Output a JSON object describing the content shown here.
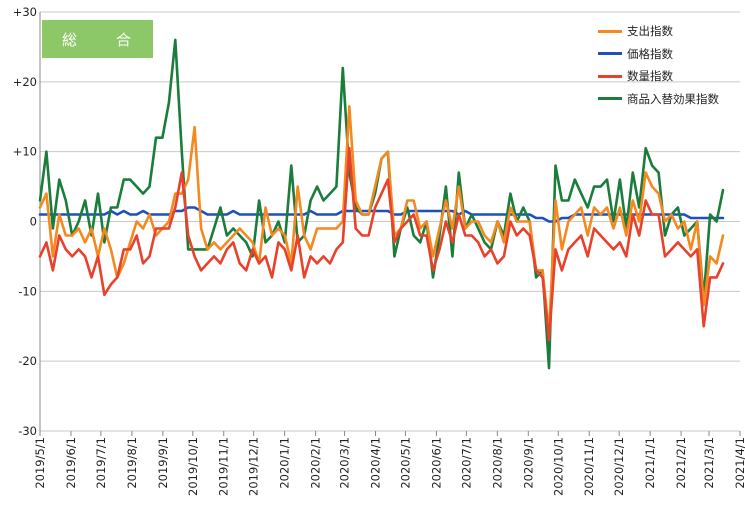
{
  "chart_data": {
    "type": "line",
    "title": "総　合",
    "ylim": [
      -30,
      30
    ],
    "yticks": [
      30,
      20,
      10,
      0,
      -10,
      -20,
      -30
    ],
    "ytick_labels": [
      "+30",
      "+20",
      "+10",
      "0",
      "-10",
      "-20",
      "-30"
    ],
    "x_start": "2019-05-01",
    "x_end": "2021-04-01",
    "x_step": "weekly",
    "xtick_labels": [
      "2019/5/1",
      "2019/6/1",
      "2019/7/1",
      "2019/8/1",
      "2019/9/1",
      "2019/10/1",
      "2019/11/1",
      "2019/12/1",
      "2020/1/1",
      "2020/2/1",
      "2020/3/1",
      "2020/4/1",
      "2020/5/1",
      "2020/6/1",
      "2020/7/1",
      "2020/8/1",
      "2020/9/1",
      "2020/10/1",
      "2020/11/1",
      "2020/12/1",
      "2021/1/1",
      "2021/2/1",
      "2021/3/1",
      "2021/4/1"
    ],
    "grid": "horizontal",
    "legend_position": "top-right",
    "series": [
      {
        "name": "支出指数",
        "color": "#f5891f",
        "values": [
          2,
          4,
          -5,
          1,
          -2,
          -2,
          -1,
          -3,
          -1,
          -5,
          -1,
          -4,
          -8,
          -6,
          -3,
          0,
          -1,
          1,
          -2,
          -1,
          0,
          4,
          4,
          6,
          13.5,
          -1,
          -4,
          -3,
          -4,
          -3,
          -2,
          -1,
          -2,
          -3,
          -6,
          2,
          -2,
          -1,
          -2,
          -6,
          5,
          -2,
          -4,
          -1,
          -1,
          -1,
          -1,
          0,
          16.5,
          3,
          1,
          1,
          5,
          9,
          10,
          -2,
          -1,
          3,
          3,
          -1,
          0,
          -5,
          -1,
          3,
          -1,
          5,
          -1,
          0,
          0,
          -2,
          -3,
          0,
          -3,
          2,
          0,
          0,
          0,
          -7,
          -7,
          -16,
          3,
          -4,
          0,
          1,
          2,
          -2,
          2,
          1,
          2,
          -1,
          2,
          -2,
          3,
          0,
          7,
          5,
          4,
          0,
          1,
          -1,
          0,
          -4,
          0,
          -12,
          -5,
          -6,
          -2
        ]
      },
      {
        "name": "価格指数",
        "color": "#1e4fbf",
        "values": [
          1,
          1,
          1,
          1,
          1,
          1,
          1,
          1,
          1,
          1,
          1,
          1.5,
          1,
          1.5,
          1,
          1,
          1.5,
          1,
          1,
          1,
          1,
          1.5,
          1.5,
          2,
          2,
          1.5,
          1,
          1,
          1,
          1,
          1.5,
          1,
          1,
          1,
          1,
          1,
          1,
          1,
          1,
          1,
          1,
          1,
          1.5,
          1,
          1,
          1,
          1,
          1.5,
          1.5,
          1.5,
          1.5,
          1.5,
          1.5,
          1.5,
          1.5,
          1,
          1,
          1.5,
          1.5,
          1.5,
          1.5,
          1.5,
          1.5,
          1.5,
          1.5,
          1,
          1.5,
          1,
          1,
          1,
          1,
          1,
          1,
          1,
          1,
          1,
          1,
          0.5,
          0.5,
          0,
          0,
          0.5,
          0.5,
          1,
          1,
          1,
          1,
          1,
          1,
          1,
          1,
          1,
          1,
          1,
          1,
          1,
          1,
          1,
          1,
          1,
          1,
          0.5,
          0.5,
          0.5,
          0.5,
          0.5,
          0.5
        ]
      },
      {
        "name": "数量指数",
        "color": "#e8412c",
        "values": [
          -5,
          -3,
          -7,
          -2,
          -4,
          -5,
          -4,
          -5,
          -8,
          -5,
          -10.5,
          -9,
          -8,
          -4,
          -4,
          -2,
          -6,
          -5,
          -1,
          -1,
          -1,
          2,
          7,
          -2,
          -5,
          -7,
          -6,
          -5,
          -6,
          -4,
          -3,
          -6,
          -7,
          -4,
          -6,
          -5,
          -8,
          -3,
          -4,
          -7,
          -2,
          -8,
          -5,
          -6,
          -5,
          -6,
          -4,
          -3,
          10.5,
          -1,
          -2,
          -2,
          2,
          4,
          6,
          -3,
          -1,
          0,
          1,
          -2,
          -2,
          -7,
          -4,
          0,
          -3,
          1,
          -2,
          -2,
          -3,
          -5,
          -4,
          -6,
          -5,
          0,
          -2,
          -1,
          -2,
          -7,
          -8,
          -17,
          -4,
          -7,
          -4,
          -3,
          -2,
          -5,
          -1,
          -2,
          -3,
          -4,
          -3,
          -5,
          1,
          -2,
          3,
          1,
          1,
          -5,
          -4,
          -3,
          -4,
          -5,
          -4,
          -15,
          -8,
          -8,
          -6
        ]
      },
      {
        "name": "商品入替効果指数",
        "color": "#1a7d3c",
        "values": [
          3,
          10,
          -1,
          6,
          3,
          -2,
          0,
          3,
          -2,
          4,
          -3,
          2,
          2,
          6,
          6,
          5,
          4,
          5,
          12,
          12,
          17,
          26,
          10,
          -4,
          -4,
          -4,
          -4,
          -1,
          2,
          -2,
          -1,
          -2,
          -3,
          -5,
          3,
          -3,
          -2,
          0,
          -3,
          8,
          -3,
          -2,
          3,
          5,
          3,
          4,
          5,
          22,
          7,
          2,
          1,
          1,
          4,
          9,
          10,
          -5,
          -1,
          2,
          -2,
          -3,
          0,
          -8,
          -2,
          5,
          -5,
          7,
          -1,
          1,
          -1,
          -3,
          -4,
          0,
          -2,
          4,
          0,
          2,
          0,
          -8,
          -7,
          -21,
          8,
          3,
          3,
          6,
          4,
          2,
          5,
          5,
          6,
          0,
          6,
          -1,
          7,
          2,
          10.5,
          8,
          7,
          -2,
          1,
          2,
          -2,
          -1,
          0,
          -11,
          1,
          0,
          4.5
        ]
      }
    ]
  }
}
